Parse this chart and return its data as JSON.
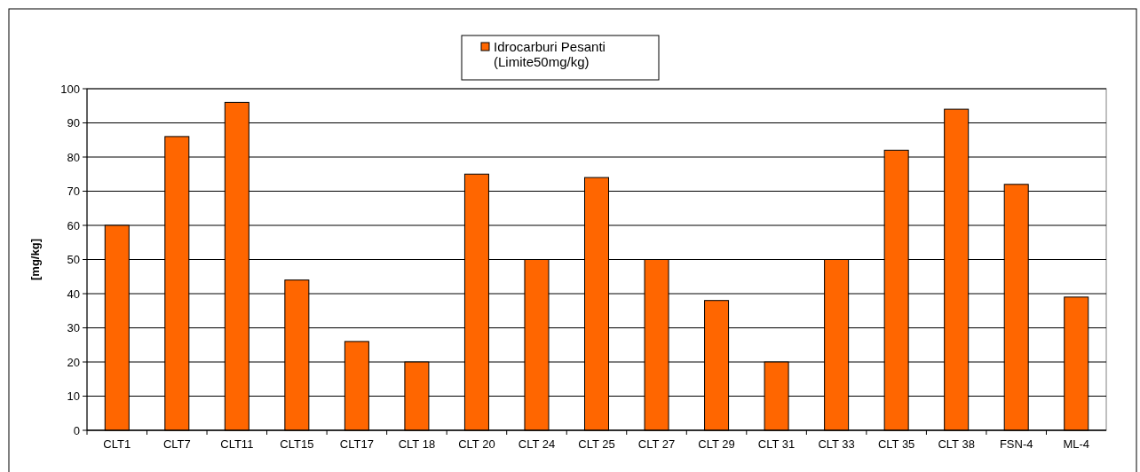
{
  "chart_data": {
    "type": "bar",
    "ylabel": "[mg/kg]",
    "categories": [
      "CLT1",
      "CLT7",
      "CLT11",
      "CLT15",
      "CLT17",
      "CLT 18",
      "CLT 20",
      "CLT 24",
      "CLT 25",
      "CLT 27",
      "CLT 29",
      "CLT 31",
      "CLT 33",
      "CLT 35",
      "CLT 38",
      "FSN-4",
      "ML-4"
    ],
    "series": [
      {
        "name": "Idrocarburi Pesanti (Limite50mg/kg)",
        "color": "#ff6600",
        "values": [
          60,
          86,
          96,
          44,
          26,
          20,
          75,
          50,
          74,
          50,
          38,
          20,
          50,
          82,
          94,
          72,
          39
        ]
      }
    ],
    "ylim": [
      0,
      100
    ],
    "yticks": [
      0,
      10,
      20,
      30,
      40,
      50,
      60,
      70,
      80,
      90,
      100
    ],
    "grid": "y",
    "legend": "top"
  }
}
